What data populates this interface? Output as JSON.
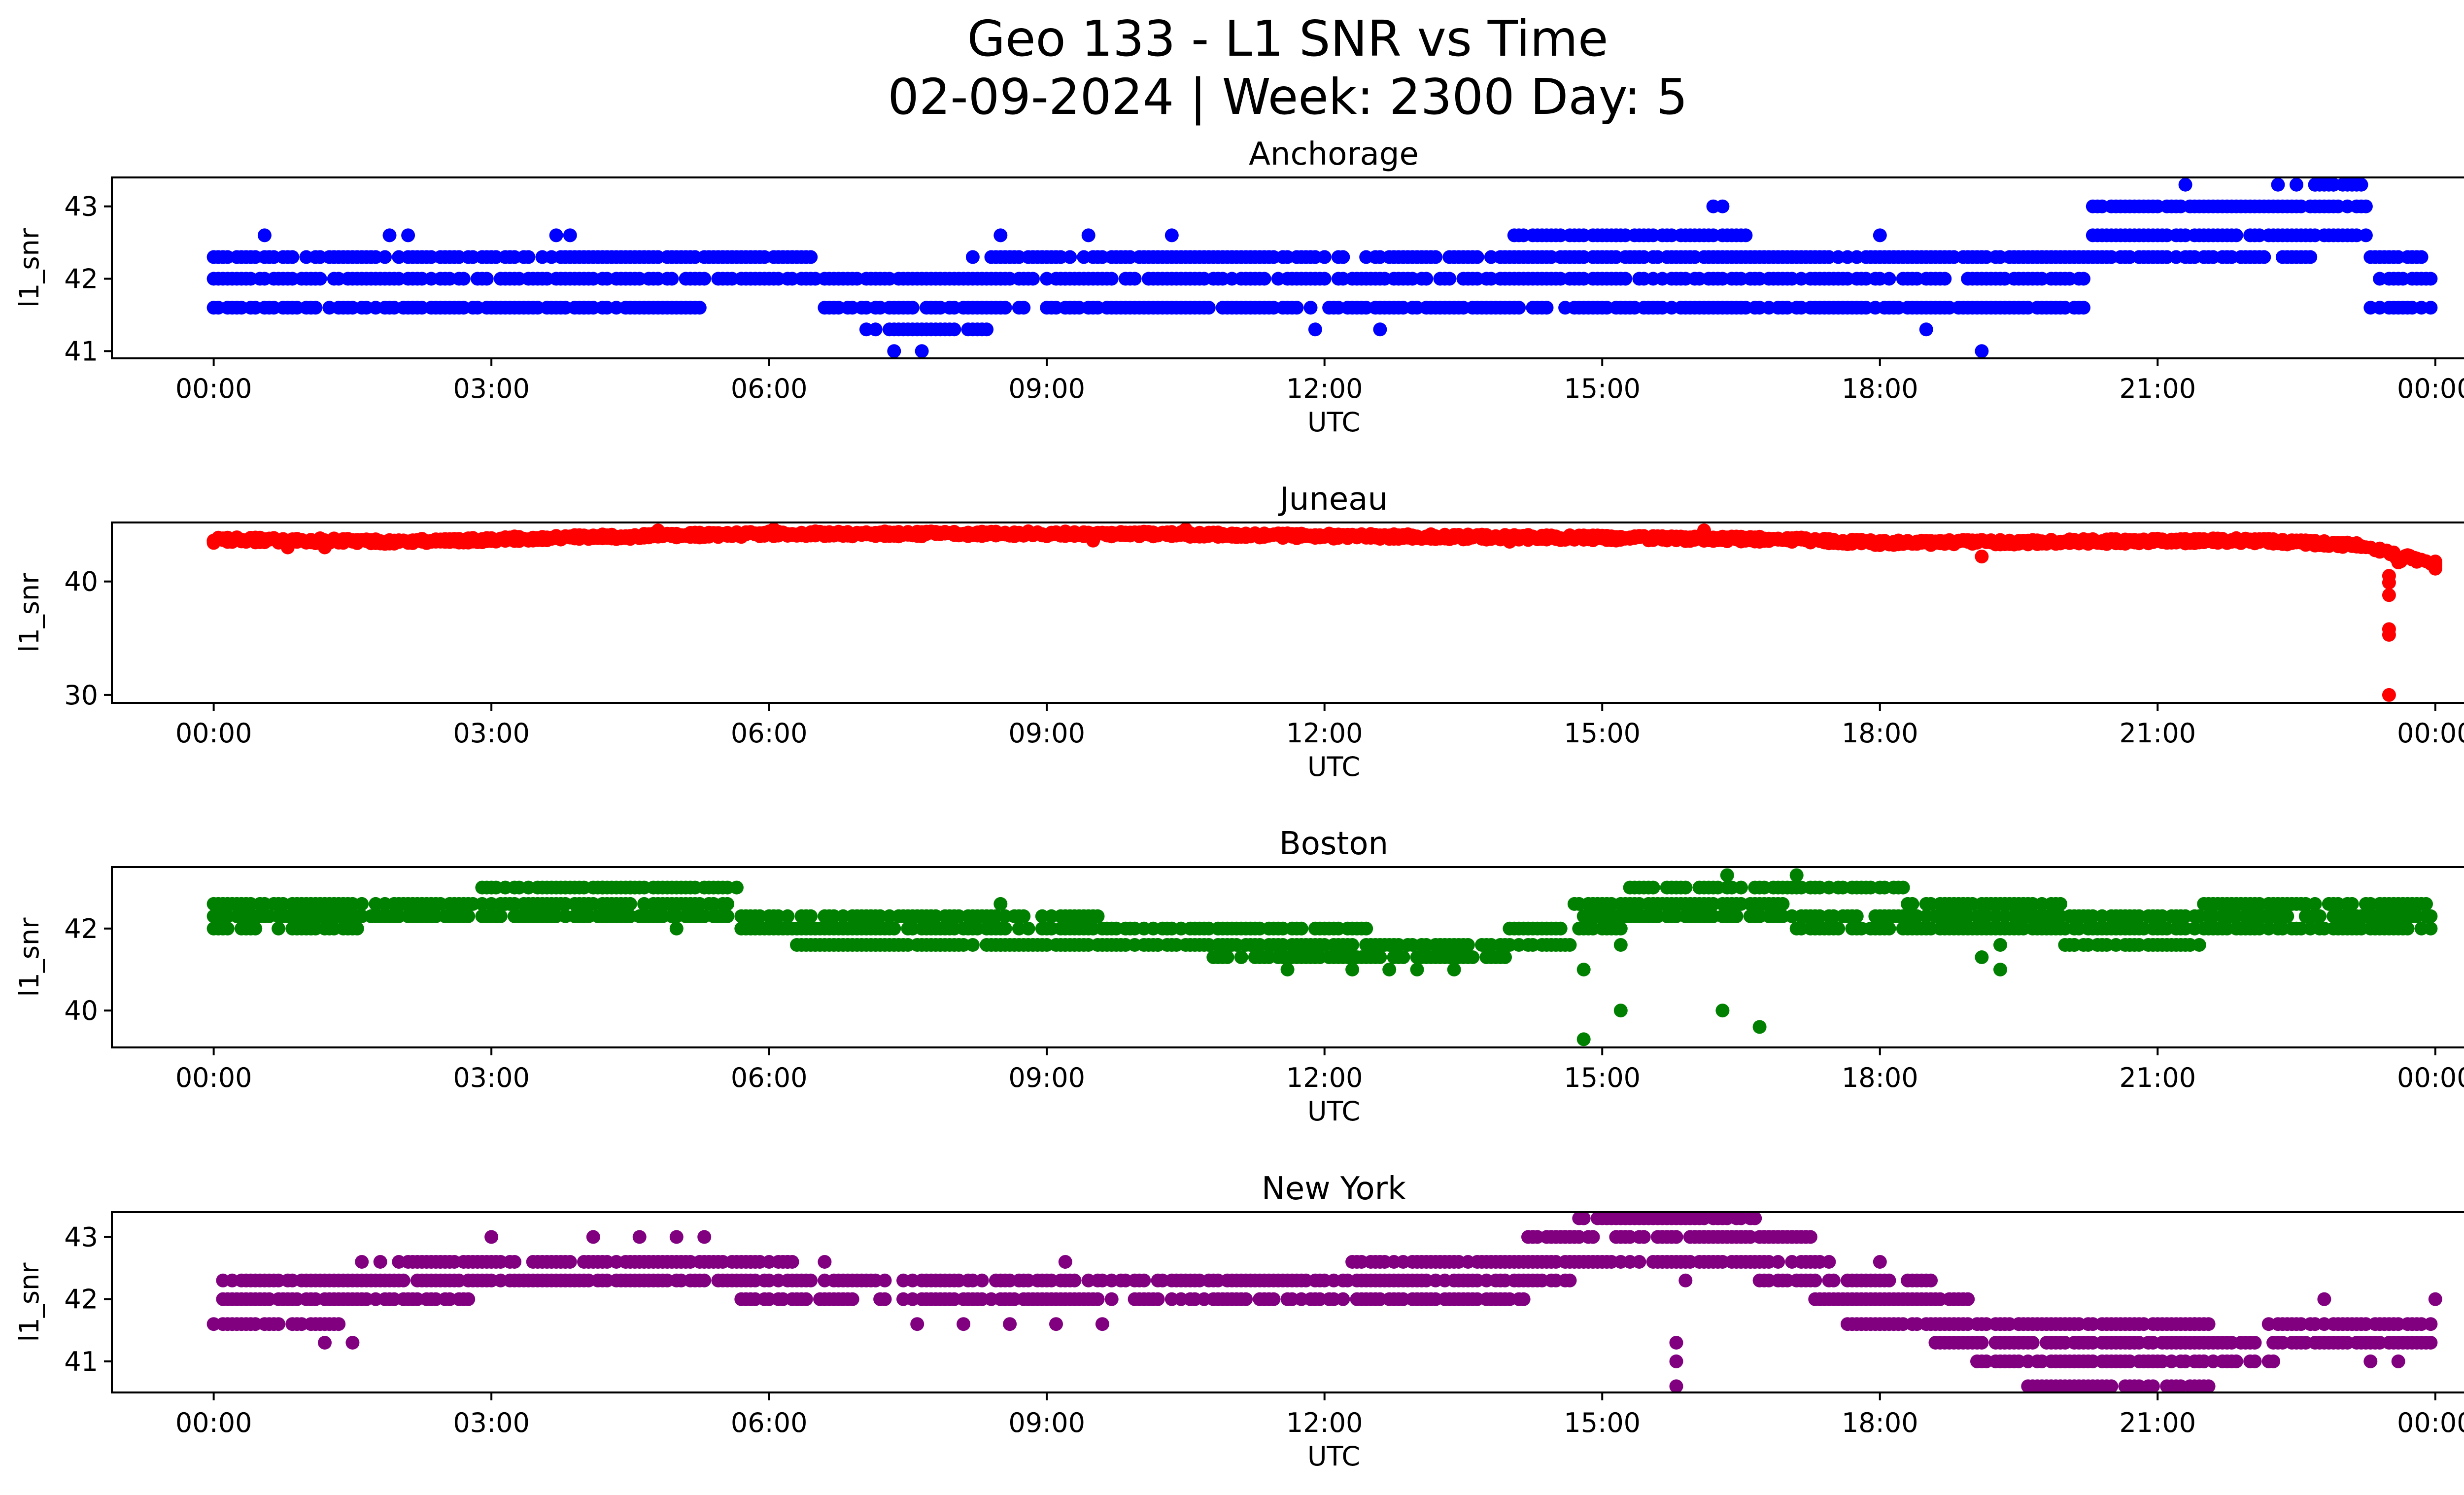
{
  "figure": {
    "title_line1": "Geo 133 - L1 SNR vs Time",
    "title_line2": "02-09-2024 | Week: 2300 Day: 5"
  },
  "chart_data": [
    {
      "type": "scatter",
      "title": "Anchorage",
      "xlabel": "UTC",
      "ylabel": "l1_snr",
      "color": "#0000ff",
      "x_ticks": [
        "00:00",
        "03:00",
        "06:00",
        "09:00",
        "12:00",
        "15:00",
        "18:00",
        "21:00",
        "00:00"
      ],
      "y_ticks": [
        41,
        42,
        43
      ],
      "xlim": [
        -1.1,
        25.3
      ],
      "ylim": [
        40.9,
        43.4
      ],
      "grid": false,
      "x_unit": "hours UTC",
      "series": [
        {
          "x_start": 0.0,
          "x_end": 24.0,
          "x_step": 0.05,
          "level_segments": [
            [
              0.0,
              2.2,
              [
                41.6,
                42.0,
                42.3
              ]
            ],
            [
              2.2,
              3.6,
              [
                41.6,
                42.0,
                42.3
              ]
            ],
            [
              3.6,
              5.3,
              [
                41.6,
                42.0,
                42.3
              ]
            ],
            [
              5.3,
              6.5,
              [
                42.0,
                42.3
              ]
            ],
            [
              6.5,
              7.0,
              [
                41.6,
                42.0
              ]
            ],
            [
              7.0,
              8.4,
              [
                41.3,
                41.6,
                42.0
              ]
            ],
            [
              8.4,
              10.3,
              [
                41.6,
                42.0,
                42.3
              ]
            ],
            [
              10.3,
              12.1,
              [
                41.6,
                42.0,
                42.3
              ]
            ],
            [
              12.1,
              14.0,
              [
                41.6,
                42.0,
                42.3
              ]
            ],
            [
              14.0,
              16.6,
              [
                41.6,
                42.0,
                42.3,
                42.6
              ]
            ],
            [
              16.6,
              18.5,
              [
                41.6,
                42.0,
                42.3
              ]
            ],
            [
              18.5,
              20.3,
              [
                41.6,
                42.0,
                42.3
              ]
            ],
            [
              20.3,
              21.0,
              [
                42.3,
                42.6,
                43.0
              ]
            ],
            [
              21.0,
              22.7,
              [
                42.3,
                42.6,
                43.0
              ]
            ],
            [
              22.7,
              23.3,
              [
                42.6,
                43.0,
                43.3
              ]
            ],
            [
              23.3,
              24.0,
              [
                41.6,
                42.0,
                42.3
              ]
            ]
          ],
          "outliers": [
            [
              0.55,
              42.6
            ],
            [
              1.9,
              42.6
            ],
            [
              2.1,
              42.6
            ],
            [
              3.7,
              42.6
            ],
            [
              3.85,
              42.6
            ],
            [
              4.0,
              41.6
            ],
            [
              7.35,
              41.0
            ],
            [
              7.65,
              41.0
            ],
            [
              8.2,
              42.3
            ],
            [
              8.5,
              42.6
            ],
            [
              9.45,
              42.6
            ],
            [
              10.35,
              42.6
            ],
            [
              11.9,
              41.3
            ],
            [
              12.0,
              42.3
            ],
            [
              12.6,
              41.3
            ],
            [
              15.15,
              42.6
            ],
            [
              16.2,
              43.0
            ],
            [
              16.3,
              43.0
            ],
            [
              16.4,
              42.0
            ],
            [
              18.0,
              42.6
            ],
            [
              18.5,
              41.3
            ],
            [
              19.1,
              41.0
            ],
            [
              21.3,
              43.3
            ],
            [
              22.3,
              43.3
            ],
            [
              22.5,
              43.3
            ],
            [
              22.7,
              43.3
            ],
            [
              22.9,
              43.3
            ]
          ]
        }
      ]
    },
    {
      "type": "scatter",
      "title": "Juneau",
      "xlabel": "UTC",
      "ylabel": "l1_snr",
      "color": "#ff0000",
      "x_ticks": [
        "00:00",
        "03:00",
        "06:00",
        "09:00",
        "12:00",
        "15:00",
        "18:00",
        "21:00",
        "00:00"
      ],
      "y_ticks": [
        30,
        40
      ],
      "xlim": [
        -1.1,
        25.3
      ],
      "ylim": [
        29.3,
        45.2
      ],
      "grid": false,
      "x_unit": "hours UTC",
      "series": [
        {
          "x_start": 0.0,
          "x_end": 23.2,
          "x_step": 0.05,
          "baseline_points": [
            [
              0,
              43.7
            ],
            [
              2,
              43.5
            ],
            [
              4,
              43.9
            ],
            [
              6,
              44.2
            ],
            [
              10,
              44.2
            ],
            [
              12,
              44.0
            ],
            [
              14,
              43.9
            ],
            [
              17,
              43.7
            ],
            [
              18,
              43.4
            ],
            [
              20,
              43.5
            ],
            [
              22,
              43.6
            ],
            [
              23.2,
              43.2
            ]
          ],
          "band": 0.45,
          "tail": [
            [
              23.2,
              43.0
            ],
            [
              23.4,
              42.8
            ],
            [
              23.55,
              42.4
            ],
            [
              23.6,
              41.8
            ],
            [
              23.7,
              42.2
            ],
            [
              23.8,
              41.9
            ],
            [
              24.0,
              41.7
            ],
            [
              24.0,
              41.3
            ]
          ],
          "outliers": [
            [
              0.0,
              43.4
            ],
            [
              0.8,
              43.0
            ],
            [
              1.2,
              43.0
            ],
            [
              4.8,
              44.5
            ],
            [
              6.05,
              44.6
            ],
            [
              9.5,
              43.6
            ],
            [
              10.5,
              44.6
            ],
            [
              14.0,
              43.5
            ],
            [
              16.1,
              44.5
            ],
            [
              19.1,
              42.2
            ],
            [
              23.5,
              40.5
            ],
            [
              23.5,
              39.9
            ],
            [
              23.5,
              38.8
            ],
            [
              23.5,
              35.8
            ],
            [
              23.5,
              35.3
            ],
            [
              23.5,
              30.0
            ]
          ]
        }
      ]
    },
    {
      "type": "scatter",
      "title": "Boston",
      "xlabel": "UTC",
      "ylabel": "l1_snr",
      "color": "#008000",
      "x_ticks": [
        "00:00",
        "03:00",
        "06:00",
        "09:00",
        "12:00",
        "15:00",
        "18:00",
        "21:00",
        "00:00"
      ],
      "y_ticks": [
        40,
        42
      ],
      "xlim": [
        -1.1,
        25.3
      ],
      "ylim": [
        39.1,
        43.5
      ],
      "grid": false,
      "x_unit": "hours UTC",
      "series": [
        {
          "x_start": 0.0,
          "x_end": 24.0,
          "x_step": 0.05,
          "level_segments": [
            [
              0.0,
              1.6,
              [
                42.0,
                42.3,
                42.6
              ]
            ],
            [
              1.6,
              2.9,
              [
                42.3,
                42.6
              ]
            ],
            [
              2.9,
              5.7,
              [
                42.3,
                42.6,
                43.0
              ]
            ],
            [
              5.7,
              6.3,
              [
                42.0,
                42.3
              ]
            ],
            [
              6.3,
              9.6,
              [
                41.6,
                42.0,
                42.3
              ]
            ],
            [
              9.6,
              10.8,
              [
                41.6,
                42.0
              ]
            ],
            [
              10.8,
              12.5,
              [
                41.3,
                41.6,
                42.0
              ]
            ],
            [
              12.5,
              14.0,
              [
                41.3,
                41.6
              ]
            ],
            [
              14.0,
              14.7,
              [
                41.6,
                42.0
              ]
            ],
            [
              14.7,
              15.3,
              [
                42.0,
                42.3,
                42.6
              ]
            ],
            [
              15.3,
              17.1,
              [
                42.3,
                42.6,
                43.0
              ]
            ],
            [
              17.1,
              18.3,
              [
                42.0,
                42.3,
                43.0
              ]
            ],
            [
              18.3,
              20.0,
              [
                42.0,
                42.3,
                42.6
              ]
            ],
            [
              20.0,
              21.5,
              [
                41.6,
                42.0,
                42.3
              ]
            ],
            [
              21.5,
              24.0,
              [
                42.0,
                42.3,
                42.6
              ]
            ]
          ],
          "outliers": [
            [
              4.2,
              43.0
            ],
            [
              4.5,
              43.0
            ],
            [
              5.0,
              42.0
            ],
            [
              8.5,
              42.6
            ],
            [
              10.2,
              41.6
            ],
            [
              11.6,
              41.0
            ],
            [
              12.3,
              41.0
            ],
            [
              12.7,
              41.0
            ],
            [
              13.0,
              41.0
            ],
            [
              13.4,
              41.0
            ],
            [
              14.8,
              41.0
            ],
            [
              14.8,
              39.3
            ],
            [
              15.2,
              40.0
            ],
            [
              15.2,
              41.6
            ],
            [
              16.3,
              40.0
            ],
            [
              16.35,
              43.3
            ],
            [
              16.7,
              39.6
            ],
            [
              17.1,
              43.3
            ],
            [
              19.1,
              41.3
            ],
            [
              19.3,
              41.0
            ],
            [
              19.3,
              41.6
            ],
            [
              20.1,
              41.6
            ]
          ]
        }
      ]
    },
    {
      "type": "scatter",
      "title": "New York",
      "xlabel": "UTC",
      "ylabel": "l1_snr",
      "color": "#800080",
      "x_ticks": [
        "00:00",
        "03:00",
        "06:00",
        "09:00",
        "12:00",
        "15:00",
        "18:00",
        "21:00",
        "00:00"
      ],
      "y_ticks": [
        41,
        42,
        43
      ],
      "xlim": [
        -1.1,
        25.3
      ],
      "ylim": [
        40.5,
        43.4
      ],
      "grid": false,
      "x_unit": "hours UTC",
      "series": [
        {
          "x_start": 0.0,
          "x_end": 24.0,
          "x_step": 0.05,
          "level_segments": [
            [
              0.0,
              1.4,
              [
                41.6,
                42.0,
                42.3
              ]
            ],
            [
              1.4,
              2.0,
              [
                42.0,
                42.3
              ]
            ],
            [
              2.0,
              2.8,
              [
                42.0,
                42.3,
                42.6
              ]
            ],
            [
              2.8,
              5.7,
              [
                42.3,
                42.6
              ]
            ],
            [
              5.7,
              6.3,
              [
                42.0,
                42.3,
                42.6
              ]
            ],
            [
              6.3,
              12.3,
              [
                42.0,
                42.3
              ]
            ],
            [
              12.3,
              14.2,
              [
                42.0,
                42.3,
                42.6
              ]
            ],
            [
              14.2,
              14.7,
              [
                42.3,
                42.6,
                43.0
              ]
            ],
            [
              14.7,
              16.7,
              [
                42.6,
                43.0,
                43.3
              ]
            ],
            [
              16.7,
              17.3,
              [
                42.3,
                42.6,
                43.0
              ]
            ],
            [
              17.3,
              17.6,
              [
                42.0,
                42.3,
                42.6
              ]
            ],
            [
              17.6,
              18.6,
              [
                41.6,
                42.0,
                42.3
              ]
            ],
            [
              18.6,
              19.0,
              [
                41.3,
                41.6,
                42.0
              ]
            ],
            [
              19.0,
              19.6,
              [
                41.0,
                41.3,
                41.6
              ]
            ],
            [
              19.6,
              21.6,
              [
                40.6,
                41.0,
                41.3,
                41.6
              ]
            ],
            [
              21.6,
              22.3,
              [
                41.0,
                41.3
              ]
            ],
            [
              22.3,
              24.0,
              [
                41.3,
                41.6
              ]
            ]
          ],
          "outliers": [
            [
              1.2,
              41.3
            ],
            [
              1.5,
              41.3
            ],
            [
              1.6,
              42.6
            ],
            [
              1.8,
              42.6
            ],
            [
              3.0,
              43.0
            ],
            [
              4.1,
              43.0
            ],
            [
              4.6,
              43.0
            ],
            [
              5.0,
              43.0
            ],
            [
              5.3,
              43.0
            ],
            [
              6.2,
              42.6
            ],
            [
              6.6,
              42.6
            ],
            [
              7.6,
              41.6
            ],
            [
              8.1,
              41.6
            ],
            [
              8.6,
              41.6
            ],
            [
              9.1,
              41.6
            ],
            [
              9.2,
              42.6
            ],
            [
              9.6,
              41.6
            ],
            [
              14.8,
              43.3
            ],
            [
              15.8,
              41.3
            ],
            [
              15.8,
              41.0
            ],
            [
              15.8,
              40.6
            ],
            [
              15.9,
              42.3
            ],
            [
              17.0,
              42.3
            ],
            [
              18.0,
              42.6
            ],
            [
              19.5,
              41.6
            ],
            [
              20.7,
              41.3
            ],
            [
              21.4,
              41.6
            ],
            [
              21.5,
              41.0
            ],
            [
              22.2,
              41.6
            ],
            [
              22.8,
              42.0
            ],
            [
              23.3,
              41.0
            ],
            [
              23.6,
              41.0
            ],
            [
              24.0,
              42.0
            ]
          ]
        }
      ]
    }
  ]
}
